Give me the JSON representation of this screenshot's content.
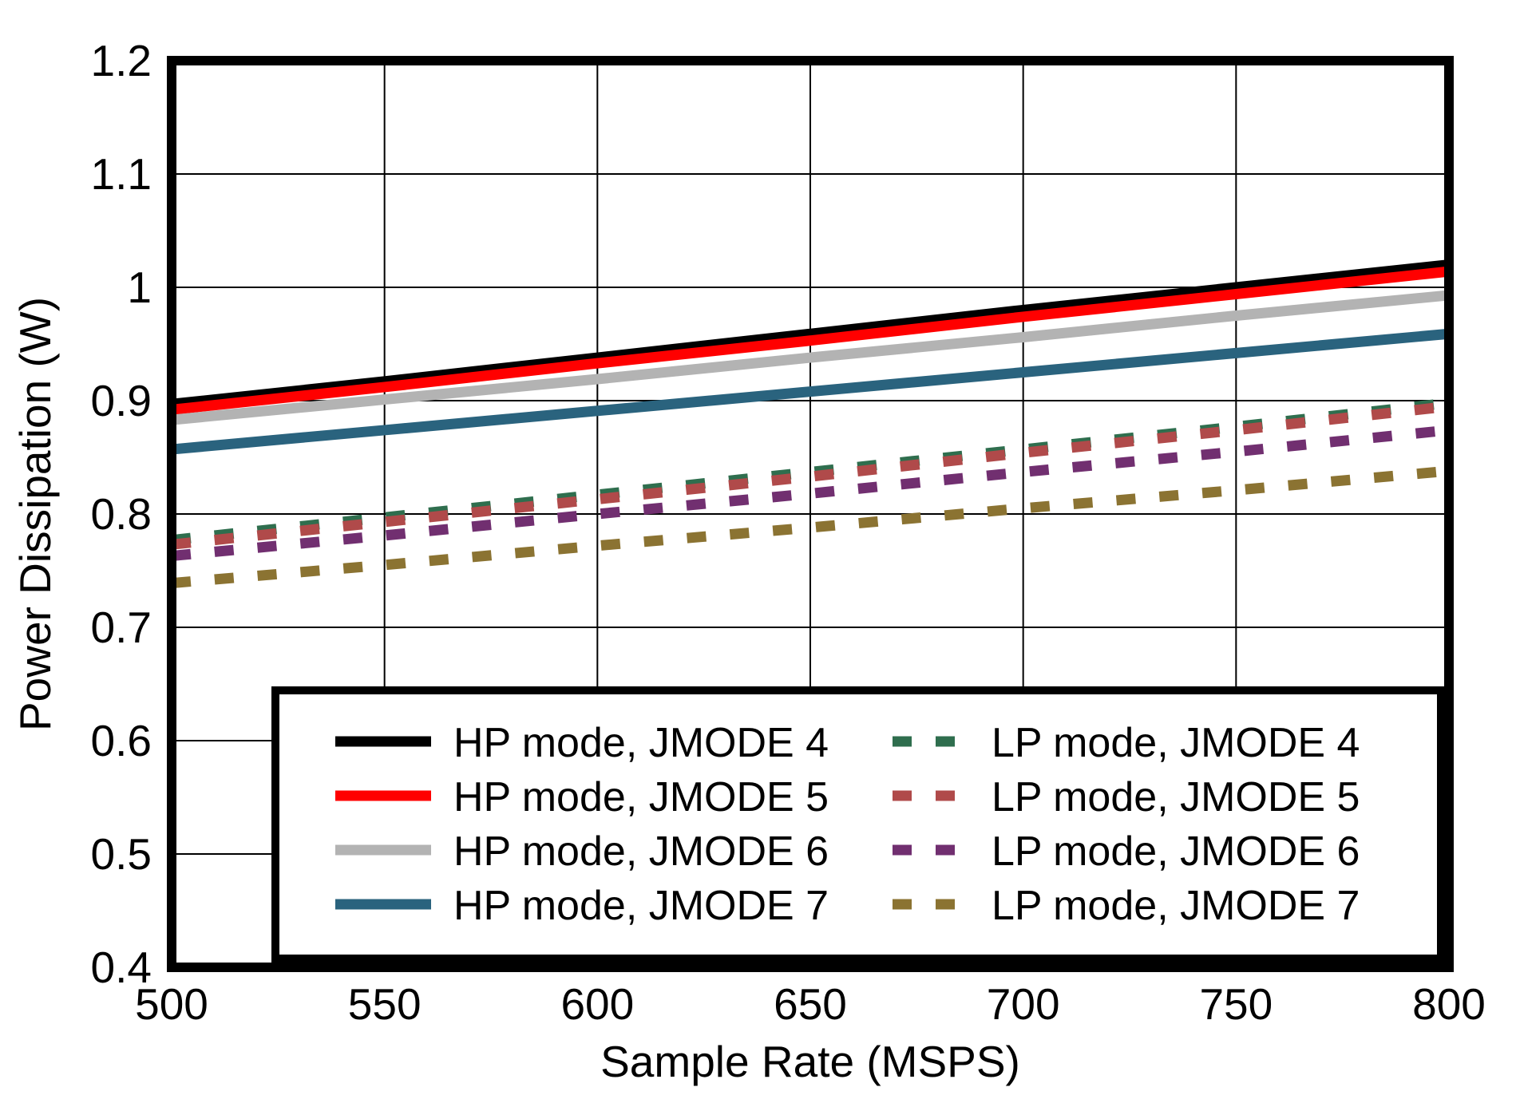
{
  "chart_data": {
    "type": "line",
    "title": "",
    "xlabel": "Sample Rate (MSPS)",
    "ylabel": "Power Dissipation (W)",
    "xlim": [
      500,
      800
    ],
    "ylim": [
      0.4,
      1.2
    ],
    "x_ticks": [
      500,
      550,
      600,
      650,
      700,
      750,
      800
    ],
    "y_ticks": [
      0.4,
      0.5,
      0.6,
      0.7,
      0.8,
      0.9,
      1.0,
      1.1,
      1.2
    ],
    "y_tick_labels": [
      "0.4",
      "0.5",
      "0.6",
      "0.7",
      "0.8",
      "0.9",
      "1",
      "1.1",
      "1.2"
    ],
    "grid": true,
    "legend_position": "inside-bottom-right",
    "x": [
      500,
      550,
      600,
      650,
      700,
      750,
      800
    ],
    "series": [
      {
        "name": "HP mode, JMODE 4",
        "mode": "HP",
        "jmode": 4,
        "line_style": "solid",
        "color": "#000000",
        "values": [
          0.897,
          0.917,
          0.938,
          0.959,
          0.98,
          1.0,
          1.02
        ]
      },
      {
        "name": "HP mode, JMODE 5",
        "mode": "HP",
        "jmode": 5,
        "line_style": "solid",
        "color": "#ff0000",
        "values": [
          0.892,
          0.912,
          0.933,
          0.953,
          0.974,
          0.994,
          1.014
        ]
      },
      {
        "name": "HP mode, JMODE 6",
        "mode": "HP",
        "jmode": 6,
        "line_style": "solid",
        "color": "#b3b3b3",
        "values": [
          0.883,
          0.901,
          0.919,
          0.938,
          0.956,
          0.975,
          0.993
        ]
      },
      {
        "name": "HP mode, JMODE 7",
        "mode": "HP",
        "jmode": 7,
        "line_style": "solid",
        "color": "#2a637e",
        "values": [
          0.857,
          0.874,
          0.891,
          0.908,
          0.925,
          0.942,
          0.959
        ]
      },
      {
        "name": "LP mode, JMODE 4",
        "mode": "LP",
        "jmode": 4,
        "line_style": "dashed",
        "color": "#2f6e4e",
        "values": [
          0.777,
          0.797,
          0.817,
          0.837,
          0.857,
          0.877,
          0.898
        ]
      },
      {
        "name": "LP mode, JMODE 5",
        "mode": "LP",
        "jmode": 5,
        "line_style": "dashed",
        "color": "#b04a4a",
        "values": [
          0.773,
          0.793,
          0.813,
          0.833,
          0.854,
          0.874,
          0.895
        ]
      },
      {
        "name": "LP mode, JMODE 6",
        "mode": "LP",
        "jmode": 6,
        "line_style": "dashed",
        "color": "#712f70",
        "values": [
          0.763,
          0.781,
          0.8,
          0.818,
          0.837,
          0.855,
          0.874
        ]
      },
      {
        "name": "LP mode, JMODE 7",
        "mode": "LP",
        "jmode": 7,
        "line_style": "dashed",
        "color": "#8b7332",
        "values": [
          0.739,
          0.755,
          0.772,
          0.788,
          0.805,
          0.821,
          0.838
        ]
      }
    ],
    "style": {
      "background": "#ffffff",
      "grid_color": "#000000",
      "border_color": "#000000",
      "text_color": "#000000"
    }
  }
}
